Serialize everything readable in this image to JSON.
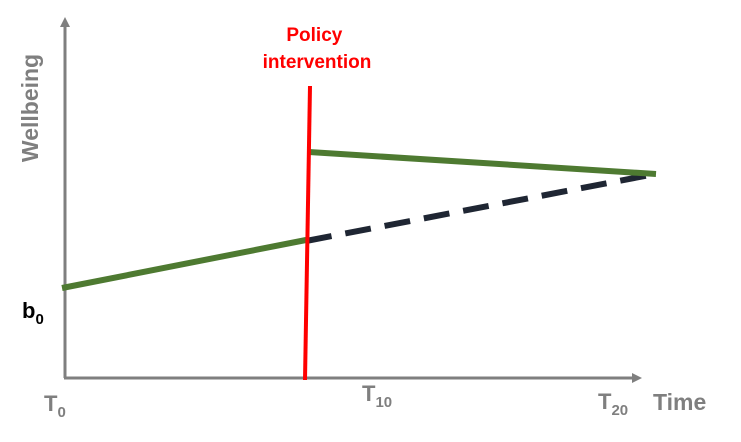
{
  "diagram": {
    "y_axis_label": "Wellbeing",
    "x_axis_label": "Time",
    "intercept_label": {
      "main": "b",
      "sub": "0"
    },
    "ticks": [
      {
        "main": "T",
        "sub": "0"
      },
      {
        "main": "T",
        "sub": "10"
      },
      {
        "main": "T",
        "sub": "20"
      }
    ],
    "intervention_label": [
      "Policy",
      "intervention"
    ],
    "colors": {
      "axes": "#7f7f7f",
      "axis_text": "#7f7f7f",
      "observed_line": "#4e7a31",
      "counterfactual_line": "#1f2633",
      "intervention_line": "#ff0000",
      "intervention_text": "#ff0000",
      "intercept_text": "#000000"
    }
  }
}
